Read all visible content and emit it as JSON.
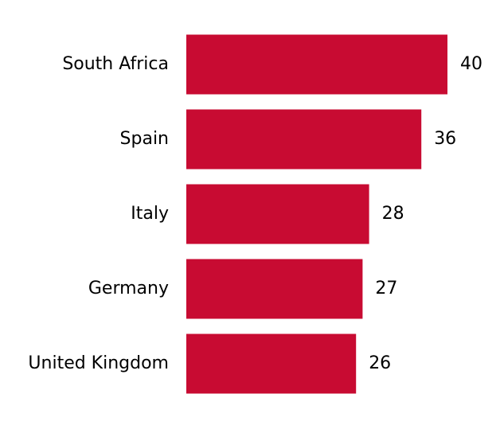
{
  "chart_data": {
    "type": "barh",
    "categories": [
      "South Africa",
      "Spain",
      "Italy",
      "Germany",
      "United Kingdom"
    ],
    "values": [
      40,
      36,
      28,
      27,
      26
    ],
    "color": "#c80b32"
  }
}
